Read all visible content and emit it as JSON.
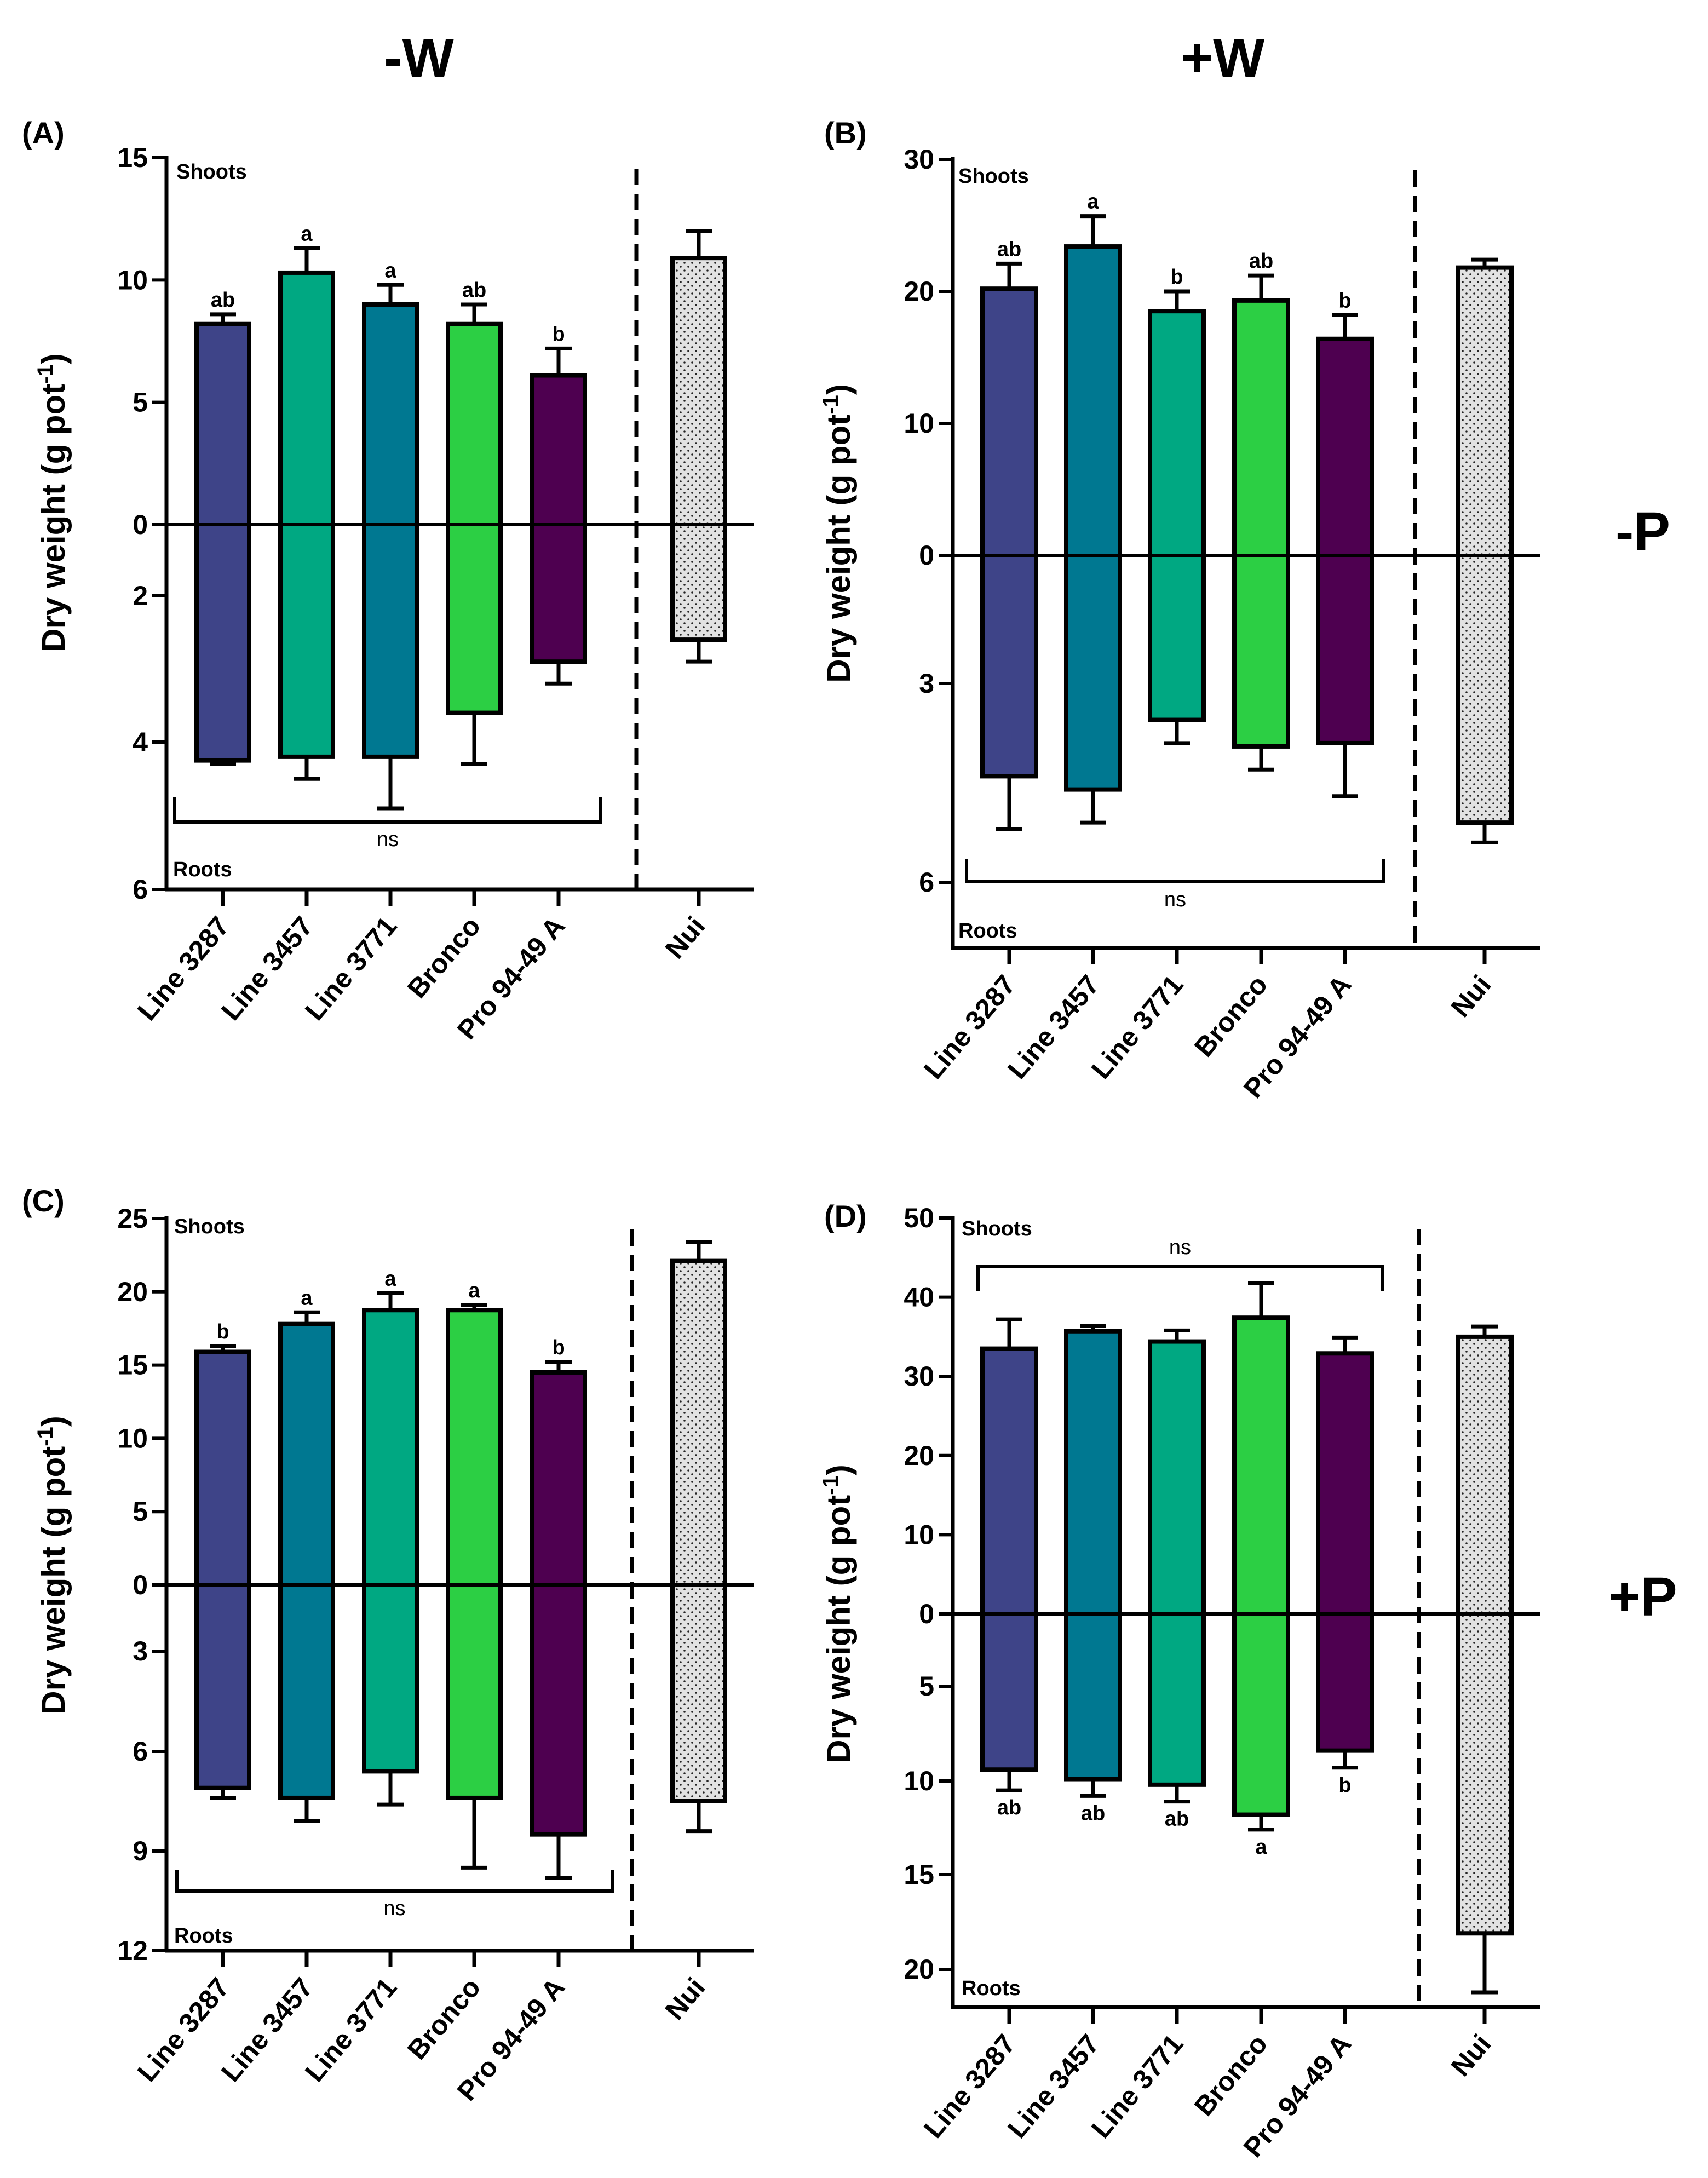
{
  "column_headers": [
    "-W",
    "+W"
  ],
  "row_headers": [
    "-P",
    "+P"
  ],
  "ylabel_main": "Dry weight (g pot",
  "ylabel_sup": "-1",
  "ylabel_close": ")",
  "shoots_label": "Shoots",
  "roots_label": "Roots",
  "ns_label": "ns",
  "colors": {
    "navy": "#3e4488",
    "blue_teal": "#007891",
    "green_teal": "#00a882",
    "green": "#2ccf44",
    "purple": "#4e0050",
    "nui": "#e2e2e2"
  },
  "chart_data": [
    {
      "panel": "(A)",
      "type": "bar",
      "subtype": "diverging-bar",
      "condition": "-W / -P",
      "categories": [
        "Line 3287",
        "Line 3457",
        "Line 3771",
        "Bronco",
        "Pro 94-49 A",
        "Nui"
      ],
      "bar_colors": [
        "#3e4488",
        "#00a882",
        "#007891",
        "#2ccf44",
        "#4e0050",
        "pattern-dots"
      ],
      "shoots": {
        "values": [
          8.2,
          10.3,
          9.0,
          8.2,
          6.1,
          10.9
        ],
        "error_upper": [
          8.6,
          11.3,
          9.8,
          9.0,
          7.2,
          12.0
        ],
        "letters": [
          "ab",
          "a",
          "a",
          "ab",
          "b",
          ""
        ],
        "ticks": [
          0,
          5,
          10,
          15
        ],
        "tick_labels": [
          "0",
          "5",
          "10",
          "15"
        ],
        "ylim": [
          0,
          15
        ]
      },
      "roots": {
        "values": [
          4.25,
          4.2,
          4.2,
          3.6,
          2.9,
          2.6
        ],
        "error_upper": [
          4.3,
          4.5,
          4.9,
          4.3,
          3.2,
          2.9
        ],
        "letters": [
          "",
          "",
          "",
          "",
          "",
          ""
        ],
        "ticks": [
          2,
          4,
          6
        ],
        "tick_labels": [
          "2",
          "4",
          "6"
        ],
        "ylim": [
          0,
          6
        ],
        "significance": "ns"
      }
    },
    {
      "panel": "(B)",
      "type": "bar",
      "subtype": "diverging-bar",
      "condition": "+W / -P",
      "categories": [
        "Line 3287",
        "Line 3457",
        "Line 3771",
        "Bronco",
        "Pro 94-49 A",
        "Nui"
      ],
      "bar_colors": [
        "#3e4488",
        "#007891",
        "#00a882",
        "#2ccf44",
        "#4e0050",
        "pattern-dots"
      ],
      "shoots": {
        "values": [
          20.2,
          23.4,
          18.5,
          19.3,
          16.4,
          21.8
        ],
        "error_upper": [
          22.1,
          25.7,
          20.0,
          21.2,
          18.2,
          22.4
        ],
        "letters": [
          "ab",
          "a",
          "b",
          "ab",
          "b",
          ""
        ],
        "ticks": [
          0,
          10,
          20,
          30
        ],
        "tick_labels": [
          "0",
          "10",
          "20",
          "30"
        ],
        "ylim": [
          0,
          30
        ]
      },
      "roots": {
        "values": [
          4.4,
          4.6,
          3.55,
          3.95,
          3.9,
          5.1
        ],
        "error_upper": [
          5.2,
          5.1,
          3.9,
          4.3,
          4.7,
          5.4
        ],
        "letters": [
          "",
          "",
          "",
          "",
          "",
          ""
        ],
        "ticks": [
          3,
          6
        ],
        "tick_labels": [
          "3",
          "6"
        ],
        "ylim": [
          0,
          7
        ],
        "significance": "ns"
      }
    },
    {
      "panel": "(C)",
      "type": "bar",
      "subtype": "diverging-bar",
      "condition": "-W / +P",
      "categories": [
        "Line 3287",
        "Line 3457",
        "Line 3771",
        "Bronco",
        "Pro 94-49 A",
        "Nui"
      ],
      "bar_colors": [
        "#3e4488",
        "#007891",
        "#00a882",
        "#2ccf44",
        "#4e0050",
        "pattern-dots"
      ],
      "shoots": {
        "values": [
          15.9,
          17.8,
          18.75,
          18.75,
          14.5,
          22.1
        ],
        "error_upper": [
          16.3,
          18.6,
          19.9,
          19.1,
          15.2,
          23.4
        ],
        "letters": [
          "b",
          "a",
          "a",
          "a",
          "b",
          ""
        ],
        "ticks": [
          0,
          5,
          10,
          15,
          20,
          25
        ],
        "tick_labels": [
          "0",
          "5",
          "10",
          "15",
          "20",
          "25"
        ],
        "ylim": [
          0,
          25
        ]
      },
      "roots": {
        "values": [
          7.1,
          7.4,
          6.6,
          7.4,
          8.5,
          7.5
        ],
        "error_upper": [
          7.4,
          8.1,
          7.6,
          9.5,
          9.8,
          8.4
        ],
        "letters": [
          "",
          "",
          "",
          "",
          "",
          ""
        ],
        "ticks": [
          3,
          6,
          9,
          12
        ],
        "tick_labels": [
          "3",
          "6",
          "9",
          "12"
        ],
        "ylim": [
          0,
          12
        ],
        "significance": "ns"
      }
    },
    {
      "panel": "(D)",
      "type": "bar",
      "subtype": "diverging-bar",
      "condition": "+W / +P",
      "categories": [
        "Line 3287",
        "Line 3457",
        "Line 3771",
        "Bronco",
        "Pro 94-49 A",
        "Nui"
      ],
      "bar_colors": [
        "#3e4488",
        "#007891",
        "#00a882",
        "#2ccf44",
        "#4e0050",
        "pattern-dots"
      ],
      "shoots": {
        "values": [
          33.5,
          35.7,
          34.4,
          37.4,
          32.9,
          35.0
        ],
        "error_upper": [
          37.2,
          36.4,
          35.8,
          41.8,
          34.9,
          36.3
        ],
        "letters": [
          "",
          "",
          "",
          "",
          "",
          ""
        ],
        "ticks": [
          0,
          10,
          20,
          30,
          40,
          50
        ],
        "tick_labels": [
          "0",
          "10",
          "20",
          "30",
          "40",
          "50"
        ],
        "ylim": [
          0,
          50
        ],
        "significance": "ns"
      },
      "roots": {
        "values": [
          9.4,
          9.9,
          10.2,
          11.8,
          8.4,
          18.1
        ],
        "error_upper": [
          10.5,
          10.8,
          11.1,
          12.6,
          9.3,
          21.2
        ],
        "letters": [
          "ab",
          "ab",
          "ab",
          "a",
          "b",
          ""
        ],
        "ticks": [
          5,
          10,
          15,
          20
        ],
        "tick_labels": [
          "5",
          "10",
          "15",
          "20"
        ],
        "ylim": [
          0,
          21
        ]
      }
    }
  ]
}
